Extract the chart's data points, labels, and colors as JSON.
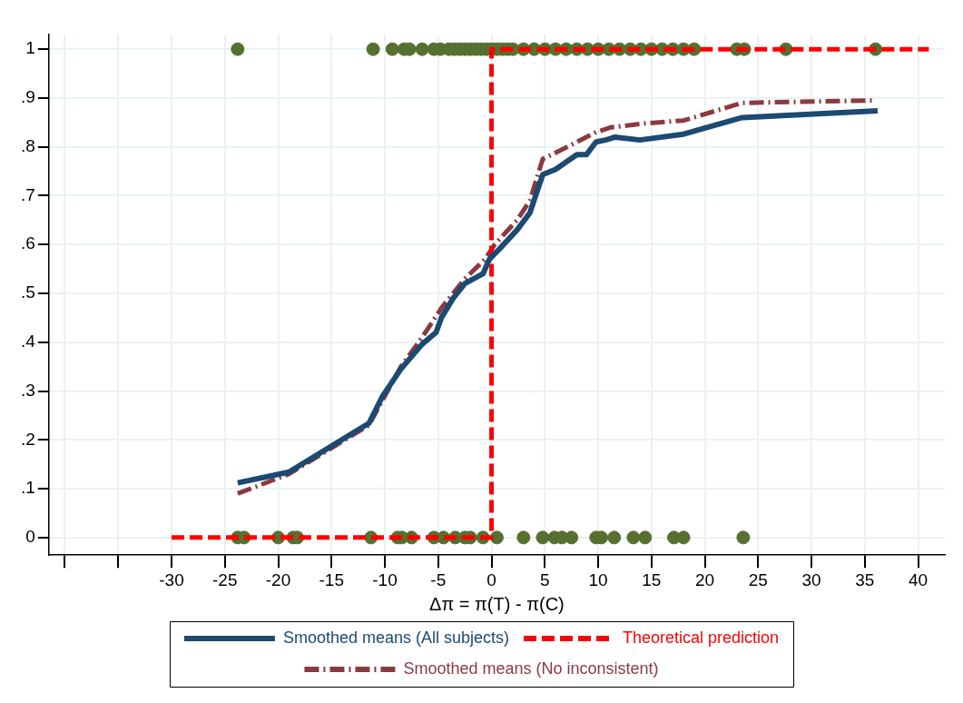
{
  "chart_data": {
    "type": "line",
    "xlabel": "Δπ = π(T) - π(C)",
    "xlim": [
      -41.5,
      42.5
    ],
    "xticks": [
      {
        "value": -40,
        "label": null
      },
      {
        "value": -35,
        "label": null
      },
      -30,
      -25,
      -20,
      -15,
      -10,
      -5,
      0,
      5,
      10,
      15,
      20,
      25,
      30,
      35,
      40
    ],
    "ylim": [
      -0.036,
      1.03
    ],
    "yticks": [
      0,
      {
        "value": 0.1,
        "label": ".1"
      },
      {
        "value": 0.2,
        "label": ".2"
      },
      {
        "value": 0.3,
        "label": ".3"
      },
      {
        "value": 0.4,
        "label": ".4"
      },
      {
        "value": 0.5,
        "label": ".5"
      },
      {
        "value": 0.6,
        "label": ".6"
      },
      {
        "value": 0.7,
        "label": ".7"
      },
      {
        "value": 0.8,
        "label": ".8"
      },
      {
        "value": 0.9,
        "label": ".9"
      },
      1
    ],
    "grid": true,
    "legend": "bottom",
    "series": [
      {
        "type": "scatter",
        "color": "#55702f",
        "marker": "circle",
        "x": [
          -23.8,
          -11.1,
          -9.3,
          -8.2,
          -7.7,
          -6.5,
          -5.4,
          -4.8,
          -4,
          -3.5,
          -3,
          -2.5,
          -2,
          -1.5,
          -1,
          -0.5,
          0,
          0.5,
          1,
          1.5,
          2,
          3,
          4,
          5,
          6,
          7,
          8,
          9,
          10,
          11,
          12,
          13,
          14,
          15,
          16,
          17,
          18,
          19,
          23,
          23.7,
          27.6,
          36,
          -23.8,
          -23.2,
          -20,
          -18.6,
          -18.2,
          -11.3,
          -8.8,
          -8.4,
          -7.5,
          -5.4,
          -4.5,
          -3.4,
          -2.5,
          -2,
          -0.8,
          0.5,
          3,
          4.8,
          5.9,
          6.6,
          7.5,
          9.8,
          10.3,
          11.5,
          13.3,
          14.4,
          17.1,
          18,
          23.6
        ],
        "values": [
          1,
          1,
          1,
          1,
          1,
          1,
          1,
          1,
          1,
          1,
          1,
          1,
          1,
          1,
          1,
          1,
          1,
          1,
          1,
          1,
          1,
          1,
          1,
          1,
          1,
          1,
          1,
          1,
          1,
          1,
          1,
          1,
          1,
          1,
          1,
          1,
          1,
          1,
          1,
          1,
          1,
          1,
          0,
          0,
          0,
          0,
          0,
          0,
          0,
          0,
          0,
          0,
          0,
          0,
          0,
          0,
          0,
          0,
          0,
          0,
          0,
          0,
          0,
          0,
          0,
          0,
          0,
          0,
          0,
          0,
          0
        ]
      },
      {
        "type": "line",
        "name": "Smoothed means (All subjects)",
        "color": "#1b4a72",
        "line_style": "solid",
        "marker": "none",
        "x": [
          -23.8,
          -19,
          -11.5,
          -10.2,
          -8.5,
          -6.5,
          -5.2,
          -4.7,
          -3.6,
          -2.5,
          -0.8,
          -0.2,
          0.7,
          2.4,
          3.6,
          4.8,
          6,
          8,
          8.9,
          9.8,
          10.7,
          11.6,
          13.9,
          18,
          23.5,
          36.2
        ],
        "values": [
          0.112,
          0.134,
          0.234,
          0.29,
          0.345,
          0.396,
          0.42,
          0.45,
          0.49,
          0.52,
          0.54,
          0.57,
          0.59,
          0.63,
          0.665,
          0.743,
          0.754,
          0.784,
          0.784,
          0.81,
          0.814,
          0.82,
          0.814,
          0.826,
          0.86,
          0.874
        ]
      },
      {
        "type": "line",
        "name": "Theoretical prediction",
        "color": "#ff0000",
        "line_style": "dashed",
        "marker": "none",
        "x": [
          -30,
          0,
          0,
          41
        ],
        "values": [
          0,
          0,
          1,
          1
        ]
      },
      {
        "type": "line",
        "name": "Smoothed means (No inconsistent)",
        "color": "#8b3a3f",
        "line_style": "dashdot",
        "marker": "none",
        "x": [
          -23.8,
          -19,
          -11.5,
          -8.5,
          -6.5,
          -4.7,
          -2.5,
          -0.6,
          0.3,
          2.4,
          3.6,
          4.8,
          6.2,
          9.8,
          11.2,
          14.4,
          18,
          23.5,
          35.8
        ],
        "values": [
          0.09,
          0.13,
          0.23,
          0.35,
          0.41,
          0.47,
          0.53,
          0.57,
          0.6,
          0.65,
          0.69,
          0.775,
          0.79,
          0.83,
          0.84,
          0.848,
          0.854,
          0.89,
          0.895
        ]
      }
    ]
  }
}
